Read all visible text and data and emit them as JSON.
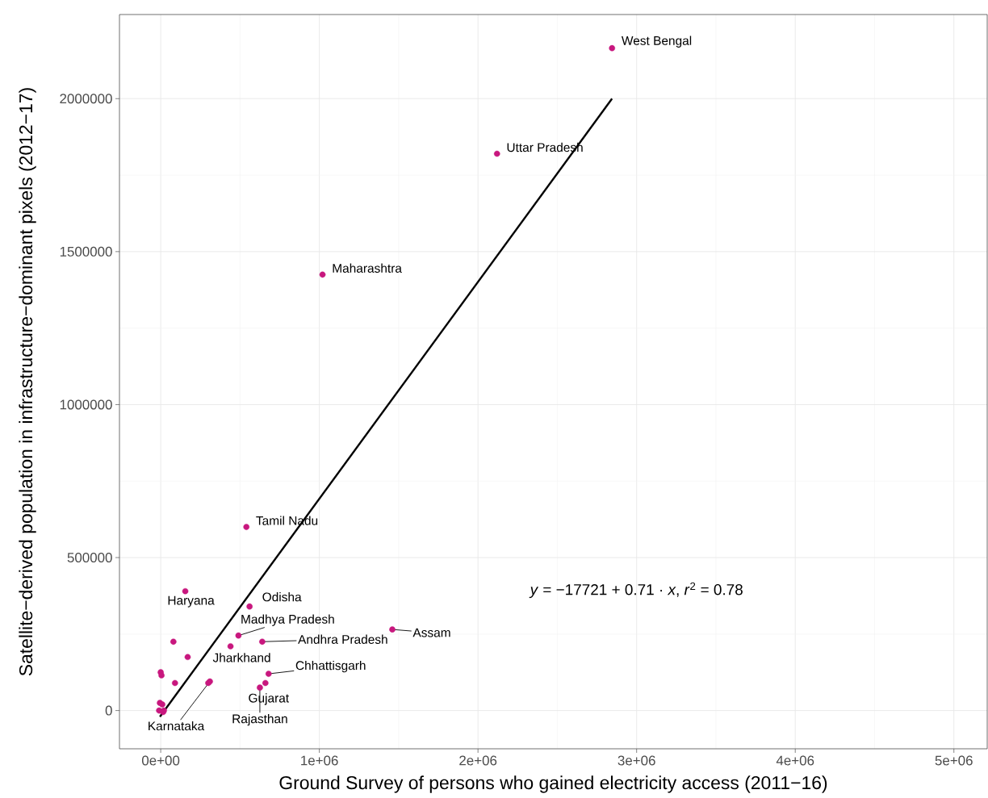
{
  "chart_data": {
    "type": "scatter",
    "xlabel": "Ground Survey of persons who gained electricity access (2011−16)",
    "ylabel": "Satellite−derived population in infrastructure−dominant pixels (2012−17)",
    "xlim": [
      -260000,
      5210000
    ],
    "ylim": [
      -125000,
      2275000
    ],
    "xticks": [
      {
        "value": 0,
        "label": "0e+00"
      },
      {
        "value": 1000000,
        "label": "1e+06"
      },
      {
        "value": 2000000,
        "label": "2e+06"
      },
      {
        "value": 3000000,
        "label": "3e+06"
      },
      {
        "value": 4000000,
        "label": "4e+06"
      },
      {
        "value": 5000000,
        "label": "5e+06"
      }
    ],
    "yticks": [
      0,
      500000,
      1000000,
      1500000,
      2000000
    ],
    "grid": true,
    "series": [
      {
        "marker": "circle",
        "color": "#c8177e",
        "x": [
          2845000,
          2120000,
          1020000,
          540000,
          155000,
          560000,
          1460000,
          490000,
          640000,
          440000,
          80000,
          170000,
          680000,
          0,
          5000,
          660000,
          90000,
          310000,
          300000,
          625000,
          -5000,
          10000,
          -10000,
          20000,
          15000
        ],
        "values": [
          2165000,
          1820000,
          1425000,
          600000,
          390000,
          340000,
          265000,
          245000,
          225000,
          210000,
          225000,
          175000,
          120000,
          125000,
          115000,
          90000,
          90000,
          95000,
          90000,
          75000,
          25000,
          20000,
          0,
          0,
          -5000
        ]
      },
      {
        "type": "line",
        "marker": "none",
        "color": "#000000",
        "x": [
          -5000,
          2845000
        ],
        "values": [
          -20000,
          2000000
        ]
      }
    ],
    "annotations": [
      {
        "text": "West Bengal",
        "x": 2845000,
        "y": 2165000
      },
      {
        "text": "Uttar Pradesh",
        "x": 2120000,
        "y": 1820000
      },
      {
        "text": "Maharashtra",
        "x": 1020000,
        "y": 1425000
      },
      {
        "text": "Tamil Nadu",
        "x": 540000,
        "y": 600000
      },
      {
        "text": "Haryana",
        "x": 155000,
        "y": 390000
      },
      {
        "text": "Odisha",
        "x": 560000,
        "y": 340000
      },
      {
        "text": "Assam",
        "x": 1460000,
        "y": 265000
      },
      {
        "text": "Madhya Pradesh",
        "x": 490000,
        "y": 245000
      },
      {
        "text": "Andhra Pradesh",
        "x": 640000,
        "y": 225000
      },
      {
        "text": "Jharkhand",
        "x": 440000,
        "y": 210000
      },
      {
        "text": "Chhattisgarh",
        "x": 680000,
        "y": 120000
      },
      {
        "text": "Gujarat",
        "x": 660000,
        "y": 90000
      },
      {
        "text": "Karnataka",
        "x": 310000,
        "y": 95000
      },
      {
        "text": "Rajasthan",
        "x": 625000,
        "y": 75000
      },
      "*y* = −17721 + 0.71 · *x*,  *r*$^{2}$ = 0.78"
    ]
  }
}
